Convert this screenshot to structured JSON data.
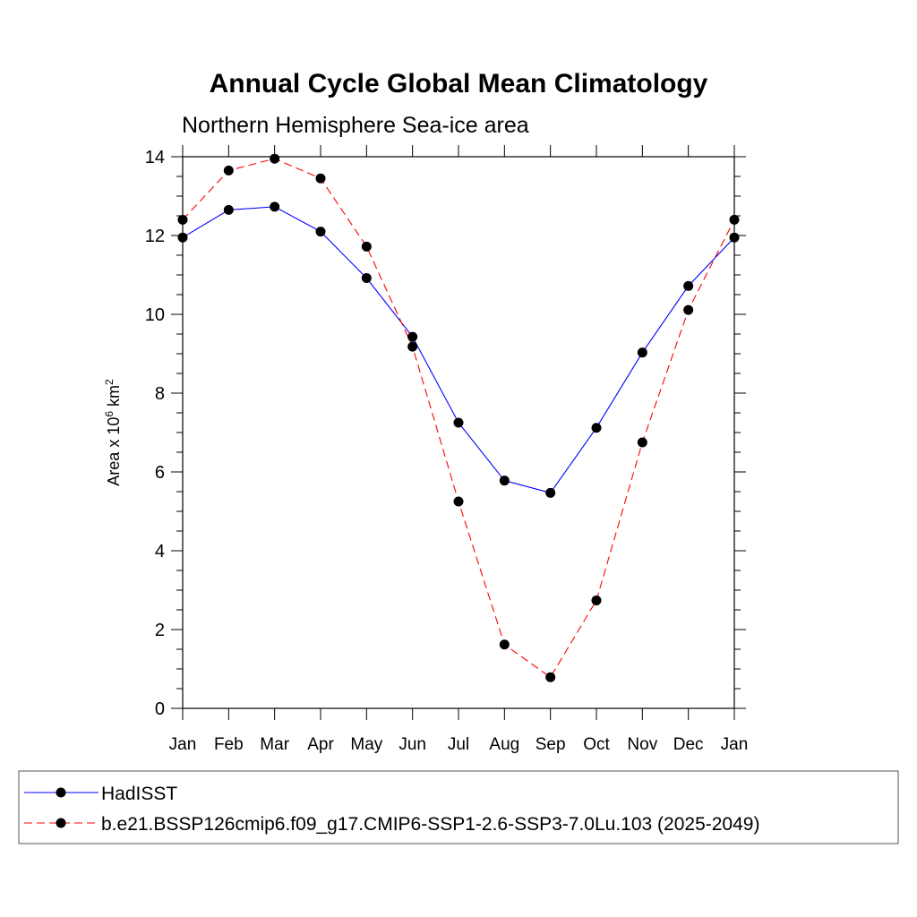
{
  "chart_data": {
    "type": "line",
    "title": "Annual Cycle Global Mean Climatology",
    "subtitle": "Northern Hemisphere Sea-ice area",
    "ylabel": {
      "prefix": "Area x 10",
      "exp1": "6",
      "mid": " km",
      "exp2": "2"
    },
    "ylim": [
      0,
      14
    ],
    "yticks": [
      "0",
      "2",
      "4",
      "6",
      "8",
      "10",
      "12",
      "14"
    ],
    "categories": [
      "Jan",
      "Feb",
      "Mar",
      "Apr",
      "May",
      "Jun",
      "Jul",
      "Aug",
      "Sep",
      "Oct",
      "Nov",
      "Dec",
      "Jan"
    ],
    "series": [
      {
        "name": "HadISST",
        "color": "#0000ff",
        "dash": "solid",
        "values": [
          11.95,
          12.65,
          12.73,
          12.1,
          10.92,
          9.43,
          7.25,
          5.78,
          5.47,
          7.12,
          9.03,
          10.72,
          11.95
        ]
      },
      {
        "name": "b.e21.BSSP126cmip6.f09_g17.CMIP6-SSP1-2.6-SSP3-7.0Lu.103 (2025-2049)",
        "color": "#ff0000",
        "dash": "dashed",
        "values": [
          12.4,
          13.65,
          13.95,
          13.45,
          11.72,
          9.18,
          5.25,
          1.62,
          0.79,
          2.74,
          6.75,
          10.11,
          12.4
        ]
      }
    ],
    "legend_position": "bottom",
    "grid": false
  }
}
